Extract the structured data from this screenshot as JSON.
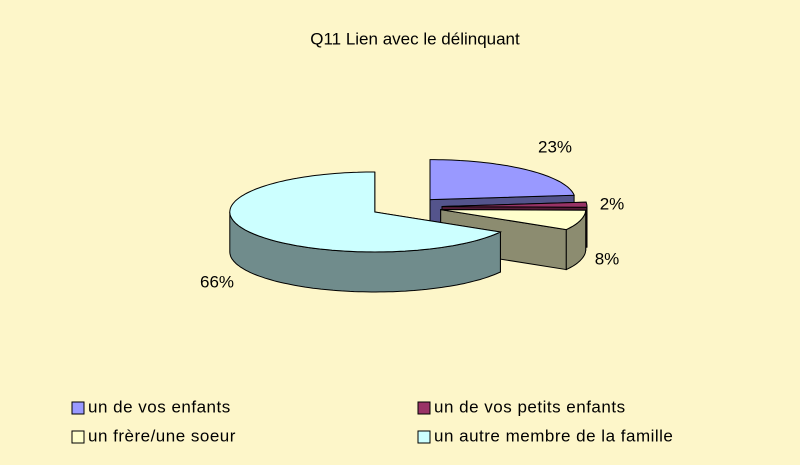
{
  "chart_data": {
    "type": "pie3d",
    "title": "Q11 Lien avec le délinquant",
    "categories": [
      "un de vos enfants",
      "un de vos petits enfants",
      "un frère/une soeur",
      "un autre membre de la famille"
    ],
    "values": [
      23,
      2,
      8,
      66
    ],
    "value_labels": [
      "23%",
      "2%",
      "8%",
      "66%"
    ],
    "colors": [
      "#9999ff",
      "#993366",
      "#ffffcc",
      "#ccffff"
    ],
    "legend": "bottom"
  }
}
